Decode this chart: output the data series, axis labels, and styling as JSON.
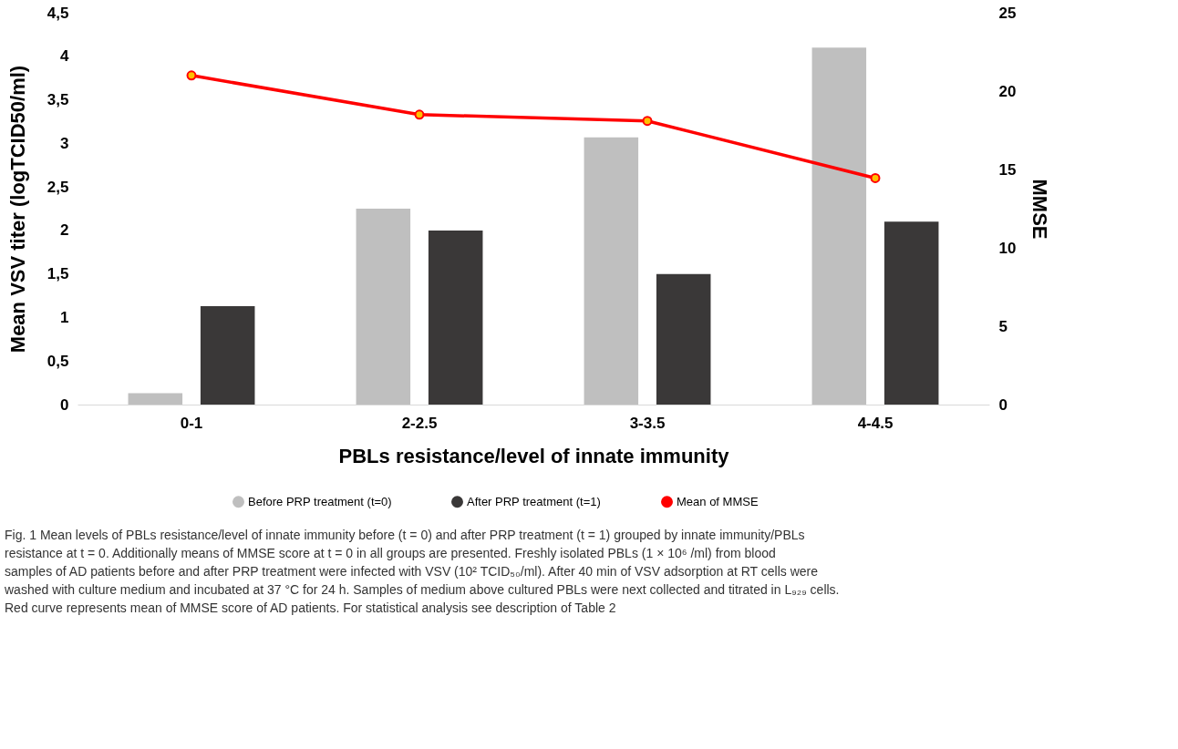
{
  "chart_data": {
    "type": "bar",
    "xlabel": "PBLs resistance/level of innate immunity",
    "ylabel": "Mean VSV titer (logTCID50/ml)",
    "y2label": "MMSE",
    "categories": [
      "0-1",
      "2-2.5",
      "3-3.5",
      "4-4.5"
    ],
    "series": [
      {
        "name": "Before PRP treatment (t=0)",
        "color": "#bfbfbf",
        "values": [
          0.13,
          2.25,
          3.07,
          4.1
        ]
      },
      {
        "name": "After PRP treatment (t=1)",
        "color": "#3a3838",
        "values": [
          1.13,
          2.0,
          1.5,
          2.1
        ]
      },
      {
        "name": "Mean of MMSE",
        "color": "#ff0000",
        "type": "line",
        "axis": "y2",
        "values": [
          21.0,
          18.5,
          18.1,
          14.45
        ]
      }
    ],
    "ylim": [
      0,
      4.5
    ],
    "yticks": [
      0,
      {
        "value": 0.5,
        "label": "0,5"
      },
      1,
      {
        "value": 1.5,
        "label": "1,5"
      },
      2,
      {
        "value": 2.5,
        "label": "2,5"
      },
      3,
      {
        "value": 3.5,
        "label": "3,5"
      },
      4,
      {
        "value": 4.5,
        "label": "4,5"
      }
    ],
    "y2lim": [
      0,
      25
    ],
    "y2ticks": [
      0,
      5,
      10,
      15,
      20,
      25
    ],
    "marker": "circle",
    "line_style": "solid",
    "legend": "bottom",
    "annotations": [
      "Fig. 1 Mean levels of PBLs resistance/level of innate immunity before (t = 0) and after PRP treatment (t = 1) grouped by innate immunity/PBLs resistance at t = 0. Additionally means of MMSE score at t = 0 in all groups are presented. Freshly isolated PBLs (1 × 10⁶ /ml) from blood samples of AD patients before and after PRP treatment were infected with VSV (10² TCID₅₀/ml). After 40 min of VSV adsorption at RT cells were washed with culture medium and incubated at 37 °C for 24 h. Samples of medium above cultured PBLs were next collected and titrated in L₉₂₉ cells. Red curve represents mean of MMSE score of AD patients. For statistical analysis see description of Table 2"
    ]
  }
}
